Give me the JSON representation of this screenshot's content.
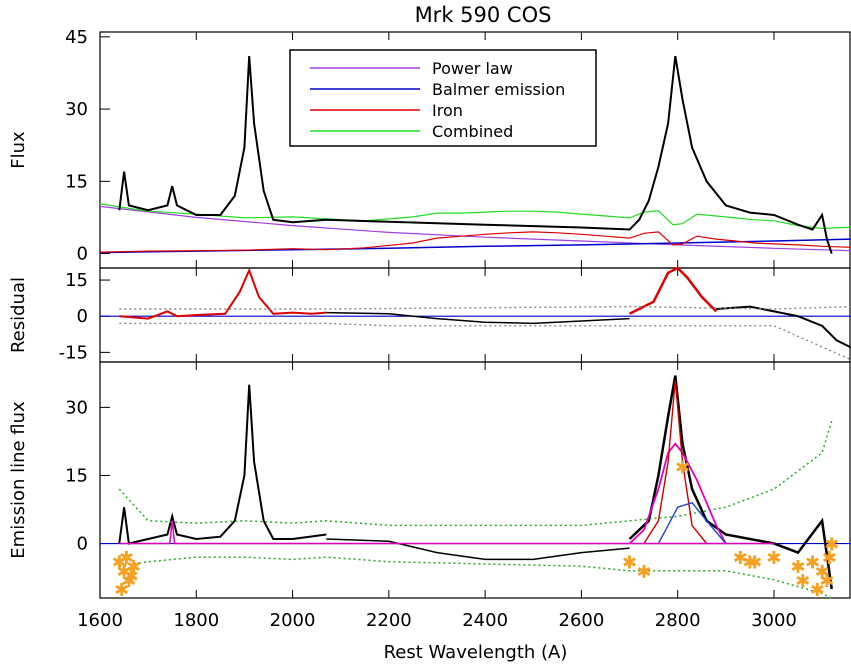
{
  "chart_data": [
    {
      "type": "line",
      "panel": "top",
      "title": "Mrk 590 COS",
      "ylabel": "Flux",
      "xlabel": "",
      "xlim": [
        1600,
        3160
      ],
      "ylim": [
        -3,
        46
      ],
      "yticks": [
        0,
        15,
        30,
        45
      ],
      "legend_position": "top-center",
      "colors": {
        "power_law": "#a040e0",
        "balmer": "#0000cc",
        "iron": "#dd0000",
        "combined": "#22dd22",
        "data": "#000000",
        "error": "#aaaaaa"
      },
      "series": [
        {
          "name": "Power law",
          "x": [
            1600,
            1800,
            2000,
            2200,
            2400,
            2600,
            2800,
            3000,
            3160
          ],
          "values": [
            9.8,
            7.5,
            5.8,
            4.4,
            3.4,
            2.6,
            1.8,
            1.1,
            0.6
          ]
        },
        {
          "name": "Balmer emission",
          "x": [
            1600,
            1800,
            2000,
            2200,
            2400,
            2600,
            2800,
            3000,
            3160
          ],
          "values": [
            0.2,
            0.5,
            0.8,
            1.1,
            1.5,
            1.8,
            2.2,
            2.6,
            3.0
          ]
        },
        {
          "name": "Iron",
          "x": [
            1600,
            1700,
            1800,
            1900,
            2000,
            2070,
            2150,
            2250,
            2300,
            2350,
            2400,
            2450,
            2500,
            2550,
            2600,
            2650,
            2700,
            2730,
            2760,
            2790,
            2810,
            2840,
            2880,
            2920,
            2960,
            3000,
            3050,
            3100,
            3160
          ],
          "values": [
            0.3,
            0.5,
            0.6,
            0.7,
            1.0,
            0.8,
            1.2,
            2.2,
            3.2,
            3.6,
            4.0,
            4.3,
            4.5,
            4.3,
            4.0,
            3.6,
            3.2,
            4.2,
            4.5,
            1.8,
            2.0,
            3.6,
            3.0,
            2.6,
            2.2,
            2.0,
            1.8,
            1.5,
            1.3
          ]
        },
        {
          "name": "Combined",
          "x": [
            1600,
            1700,
            1800,
            1900,
            2000,
            2070,
            2150,
            2250,
            2300,
            2350,
            2400,
            2450,
            2500,
            2550,
            2600,
            2650,
            2700,
            2730,
            2760,
            2790,
            2810,
            2840,
            2880,
            2920,
            2960,
            3000,
            3050,
            3100,
            3160
          ],
          "values": [
            10.3,
            8.8,
            8.2,
            7.4,
            7.6,
            7.2,
            6.8,
            7.6,
            8.4,
            8.4,
            8.6,
            8.8,
            8.8,
            8.6,
            8.2,
            7.8,
            7.4,
            8.6,
            8.9,
            6.0,
            6.2,
            8.2,
            7.8,
            7.4,
            7.0,
            6.8,
            5.8,
            5.2,
            5.5
          ]
        },
        {
          "name": "",
          "x": [
            1640,
            1650,
            1660,
            1700,
            1740,
            1750,
            1760,
            1800,
            1850,
            1880,
            1900,
            1910,
            1920,
            1940,
            1960,
            2000,
            2070,
            2200,
            2400,
            2600,
            2700,
            2720,
            2740,
            2760,
            2780,
            2795,
            2810,
            2830,
            2860,
            2900,
            2950,
            3000,
            3050,
            3080,
            3100,
            3110,
            3120
          ],
          "values": [
            9,
            17,
            10,
            9,
            10,
            14,
            10,
            8,
            8,
            12,
            22,
            41,
            27,
            13,
            7,
            6.5,
            7,
            6.6,
            6.0,
            5.4,
            5,
            7,
            11,
            18,
            27,
            41,
            32,
            22,
            15,
            10,
            8.5,
            8,
            6,
            5,
            8,
            3,
            0
          ]
        }
      ]
    },
    {
      "type": "line",
      "panel": "middle",
      "title": "",
      "ylabel": "Residual",
      "xlabel": "",
      "xlim": [
        1600,
        3160
      ],
      "ylim": [
        -19,
        20
      ],
      "yticks": [
        -15,
        0,
        15
      ],
      "series": [
        {
          "name": "",
          "x": [
            1640,
            1700,
            1740,
            1760,
            1800,
            1860,
            1890,
            1910,
            1930,
            1960,
            2000,
            2040,
            2070
          ],
          "values": [
            0,
            -1,
            2,
            0,
            0.5,
            1,
            10,
            19,
            8,
            1,
            1.5,
            1,
            1.5
          ]
        },
        {
          "name": "",
          "x": [
            2070,
            2200,
            2300,
            2400,
            2500,
            2600,
            2700
          ],
          "values": [
            1.5,
            1,
            -1,
            -2.5,
            -3,
            -2,
            -1
          ]
        },
        {
          "name": "",
          "x": [
            2700,
            2750,
            2780,
            2800,
            2820,
            2850,
            2880
          ],
          "values": [
            1,
            6,
            18,
            20,
            16,
            8,
            2
          ]
        },
        {
          "name": "",
          "x": [
            2880,
            2950,
            3000,
            3050,
            3100,
            3130,
            3160
          ],
          "values": [
            3,
            4,
            2,
            0,
            -4,
            -10,
            -13
          ]
        }
      ]
    },
    {
      "type": "line",
      "panel": "bottom",
      "title": "",
      "ylabel": "Emission line flux",
      "xlabel": "Rest Wavelength (A)",
      "xlim": [
        1600,
        3160
      ],
      "ylim": [
        -12,
        40
      ],
      "yticks": [
        0,
        15,
        30
      ],
      "xticks": [
        1600,
        1800,
        2000,
        2200,
        2400,
        2600,
        2800,
        3000
      ],
      "series": [
        {
          "name": "",
          "x": [
            1640,
            1650,
            1660,
            1700,
            1740,
            1750,
            1760,
            1800,
            1850,
            1880,
            1900,
            1910,
            1920,
            1940,
            1960,
            2000,
            2070
          ],
          "values": [
            0,
            8,
            0,
            1,
            2,
            6,
            2,
            1,
            1.5,
            5,
            15,
            35,
            18,
            5,
            1,
            1,
            2
          ]
        },
        {
          "name": "",
          "x": [
            2070,
            2200,
            2300,
            2400,
            2500,
            2600,
            2700
          ],
          "values": [
            1,
            0.5,
            -2,
            -3.5,
            -3.5,
            -2,
            -1
          ]
        },
        {
          "name": "",
          "x": [
            2700,
            2740,
            2760,
            2780,
            2795,
            2810,
            2830,
            2860,
            2900,
            2950,
            3000,
            3050,
            3100,
            3120
          ],
          "values": [
            1,
            5,
            15,
            28,
            37,
            22,
            12,
            5,
            2,
            1,
            0,
            -2,
            5,
            -10
          ]
        },
        {
          "name": "",
          "x": [
            1640,
            1700,
            1800,
            1900,
            2000,
            2070,
            2200,
            2400,
            2600,
            2700,
            2800,
            2900,
            3000,
            3100,
            3120
          ],
          "values": [
            -5,
            -4,
            -3,
            -3,
            -3.5,
            -3,
            -4,
            -4.5,
            -5,
            -6,
            -6,
            -6,
            -8,
            -11,
            -12
          ]
        },
        {
          "name": "",
          "x": [
            1640,
            1700,
            1800,
            1900,
            2000,
            2070,
            2200,
            2400,
            2600,
            2700,
            2800,
            2900,
            3000,
            3100,
            3120
          ],
          "values": [
            12,
            5,
            4.5,
            5,
            4.5,
            5,
            4,
            4,
            4,
            5,
            6,
            8,
            12,
            20,
            27
          ]
        },
        {
          "name": "",
          "x": [
            2700,
            2730,
            2760,
            2780,
            2795,
            2810,
            2840,
            2880,
            2900
          ],
          "values": [
            0,
            3,
            12,
            20,
            22,
            20,
            14,
            4,
            0
          ]
        },
        {
          "name": "",
          "x": [
            2730,
            2760,
            2780,
            2795,
            2810,
            2830,
            2860
          ],
          "values": [
            0,
            5,
            18,
            36,
            18,
            4,
            0
          ]
        },
        {
          "name": "",
          "x": [
            2760,
            2780,
            2800,
            2830,
            2860,
            2900
          ],
          "values": [
            0,
            4,
            8,
            9,
            5,
            0
          ]
        },
        {
          "name": "",
          "x": [
            1640,
            1700,
            1745,
            1750,
            1755,
            1800,
            2000,
            2700,
            2720,
            2760,
            2795,
            2830,
            2870,
            3000
          ],
          "values": [
            0,
            0,
            0,
            5,
            0,
            0,
            0,
            0,
            0,
            0,
            0,
            0,
            0,
            0
          ]
        }
      ],
      "markers": {
        "x": [
          1640,
          1650,
          1660,
          1670,
          1645,
          1655,
          1665,
          2700,
          2730,
          2810,
          2930,
          2950,
          2960,
          3000,
          3050,
          3060,
          3080,
          3090,
          3100,
          3110,
          3115,
          3120
        ],
        "values": [
          -4,
          -6,
          -8,
          -5,
          -10,
          -3,
          -7,
          -4,
          -6,
          17,
          -3,
          -4,
          -4,
          -3,
          -5,
          -8,
          -4,
          -10,
          -6,
          -8,
          -3,
          0
        ]
      }
    }
  ],
  "legend": {
    "entries": [
      "Power law",
      "Balmer emission",
      "Iron",
      "Combined"
    ]
  }
}
